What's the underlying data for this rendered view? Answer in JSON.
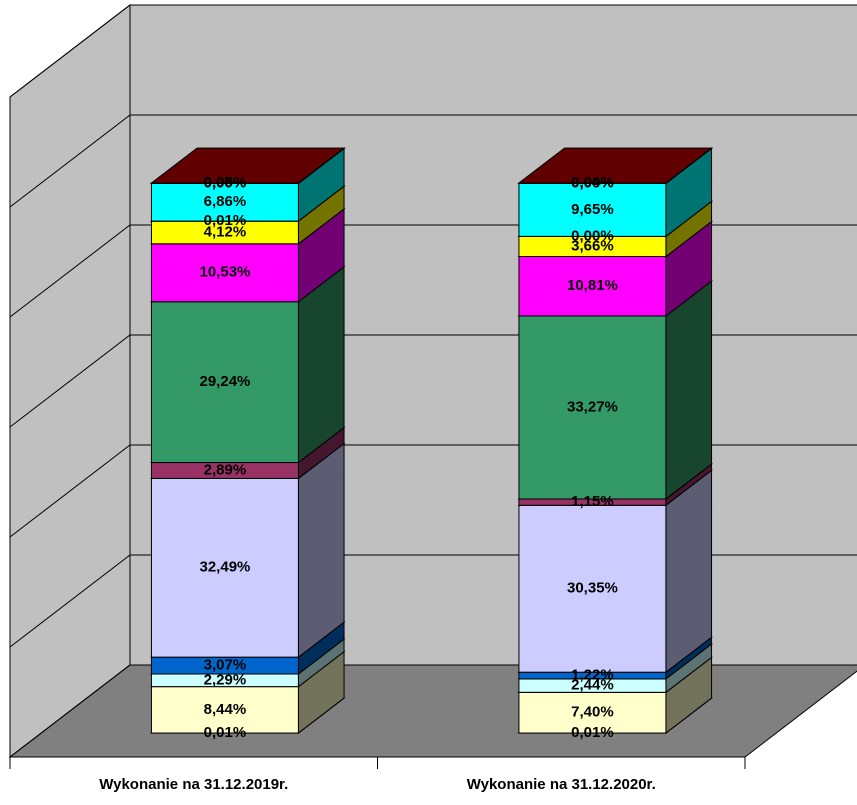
{
  "chart_data": {
    "type": "stacked_bar_3d",
    "categories": [
      "Wykonanie na 31.12.2019r.",
      "Wykonanie na 31.12.2020r."
    ],
    "ylim": [
      0,
      120
    ],
    "yticks": [
      0,
      20,
      40,
      60,
      80,
      100,
      120
    ],
    "grid": true,
    "series": [
      {
        "color": "#808080",
        "values": [
          0.01,
          0.01
        ],
        "value_labels": [
          "0,01%",
          "0,01%"
        ]
      },
      {
        "color": "#ffffcc",
        "values": [
          8.44,
          7.4
        ],
        "value_labels": [
          "8,44%",
          "7,40%"
        ]
      },
      {
        "color": "#ccffff",
        "values": [
          2.29,
          2.44
        ],
        "value_labels": [
          "2,29%",
          "2,44%"
        ]
      },
      {
        "color": "#0066cc",
        "values": [
          3.07,
          1.22
        ],
        "value_labels": [
          "3,07%",
          "1,22%"
        ]
      },
      {
        "color": "#ccccff",
        "values": [
          32.49,
          30.35
        ],
        "value_labels": [
          "32,49%",
          "30,35%"
        ]
      },
      {
        "color": "#993366",
        "values": [
          2.89,
          1.15
        ],
        "value_labels": [
          "2,89%",
          "1,15%"
        ]
      },
      {
        "color": "#339966",
        "values": [
          29.24,
          33.27
        ],
        "value_labels": [
          "29,24%",
          "33,27%"
        ]
      },
      {
        "color": "#ff00ff",
        "values": [
          10.53,
          10.81
        ],
        "value_labels": [
          "10,53%",
          "10,81%"
        ]
      },
      {
        "color": "#ffff00",
        "values": [
          4.12,
          3.66
        ],
        "value_labels": [
          "4,12%",
          "3,66%"
        ]
      },
      {
        "color": "#808000",
        "values": [
          0.01,
          0.0
        ],
        "value_labels": [
          "0,01%",
          "0,00%"
        ]
      },
      {
        "color": "#00ffff",
        "values": [
          6.86,
          9.65
        ],
        "value_labels": [
          "6,86%",
          "9,65%"
        ]
      },
      {
        "color": "#008080",
        "values": [
          0.0,
          0.0
        ],
        "value_labels": [
          "0,00%",
          "0,00%"
        ]
      },
      {
        "color": "#800000",
        "values": [
          0.05,
          0.04
        ],
        "value_labels": [
          "0,05%",
          "0,04%"
        ]
      }
    ]
  }
}
